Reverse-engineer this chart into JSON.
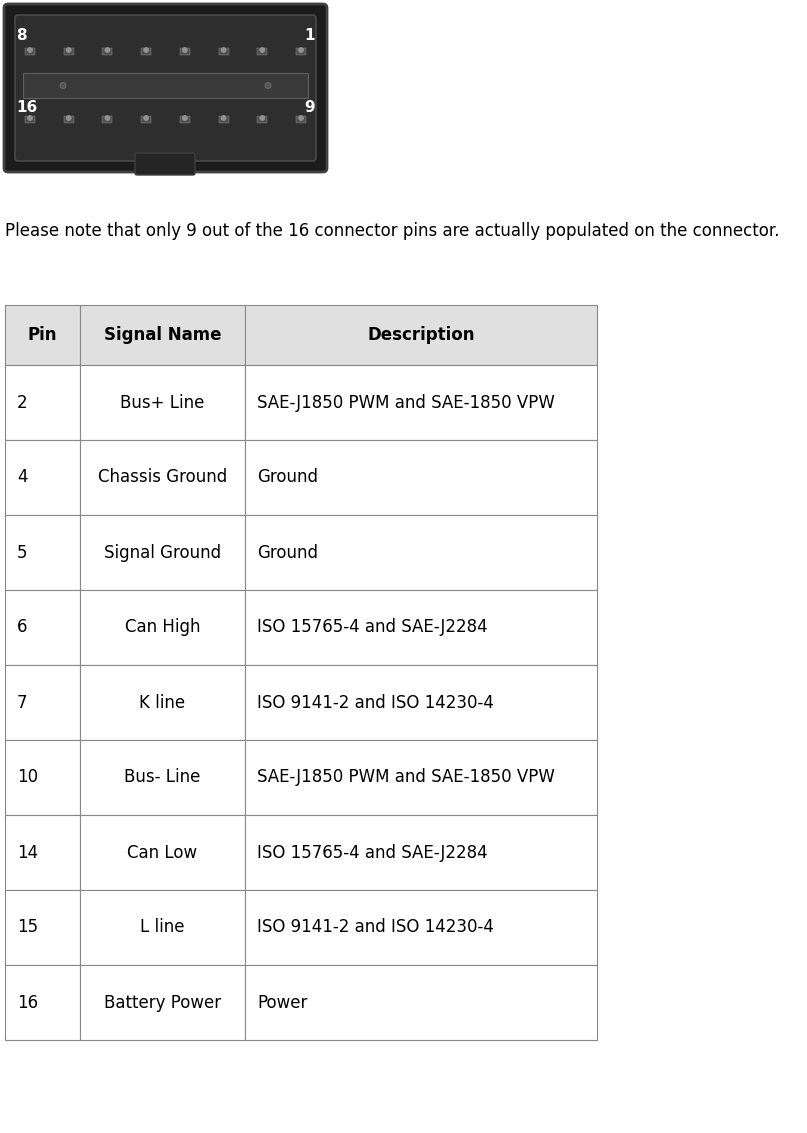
{
  "note_text": "Please note that only 9 out of the 16 connector pins are actually populated on the connector.",
  "table_headers": [
    "Pin",
    "Signal Name",
    "Description"
  ],
  "table_rows": [
    [
      "2",
      "Bus+ Line",
      "SAE-J1850 PWM and SAE-1850 VPW"
    ],
    [
      "4",
      "Chassis Ground",
      "Ground"
    ],
    [
      "5",
      "Signal Ground",
      "Ground"
    ],
    [
      "6",
      "Can High",
      "ISO 15765-4 and SAE-J2284"
    ],
    [
      "7",
      "K line",
      "ISO 9141-2 and ISO 14230-4"
    ],
    [
      "10",
      "Bus- Line",
      "SAE-J1850 PWM and SAE-1850 VPW"
    ],
    [
      "14",
      "Can Low",
      "ISO 15765-4 and SAE-J2284"
    ],
    [
      "15",
      "L line",
      "ISO 9141-2 and ISO 14230-4"
    ],
    [
      "16",
      "Battery Power",
      "Power"
    ]
  ],
  "header_bg": "#e0e0e0",
  "border_color": "#888888",
  "header_font_size": 12,
  "cell_font_size": 12,
  "note_font_size": 12,
  "fig_width": 8.07,
  "fig_height": 11.33,
  "background_color": "#ffffff",
  "text_color": "#000000",
  "connector_color": "#2a2a2a",
  "pin_color": "#787878",
  "label_color": "#ffffff"
}
